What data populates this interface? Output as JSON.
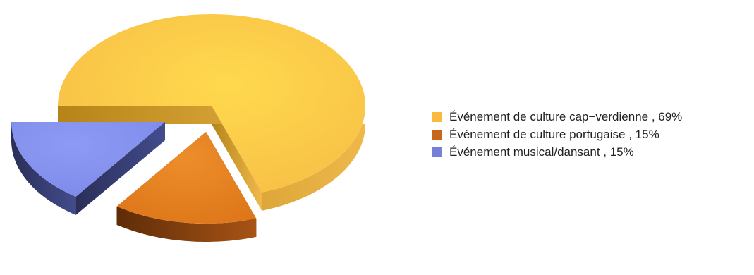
{
  "chart_data": {
    "type": "pie",
    "style": "3d-exploded",
    "legend_position": "right",
    "slices": [
      {
        "label": "Événement de culture cap−verdienne",
        "value": 69,
        "legend": "Événement de culture cap−verdienne , 69%",
        "color": "#FDC748"
      },
      {
        "label": "Événement de culture portugaise",
        "value": 15,
        "legend": "Événement de culture portugaise , 15%",
        "color": "#D46F1A"
      },
      {
        "label": "Événement musical/dansant",
        "value": 15,
        "legend": "Événement musical/dansant , 15%",
        "color": "#7F8CDC"
      }
    ]
  }
}
